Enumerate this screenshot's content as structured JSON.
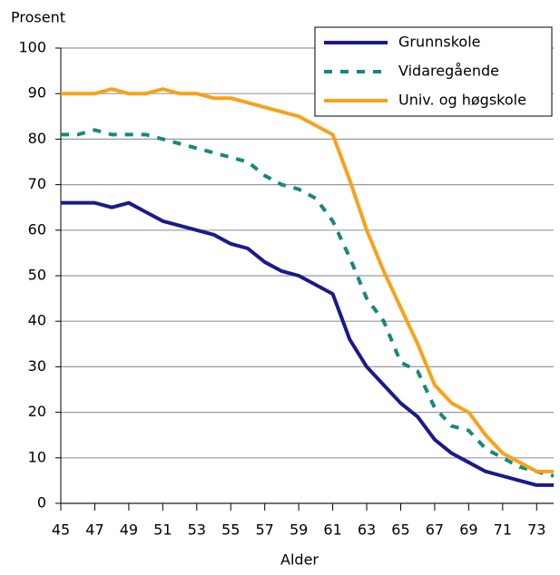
{
  "chart_data": {
    "type": "line",
    "y_label": "Prosent",
    "x_label": "Alder",
    "x": [
      45,
      46,
      47,
      48,
      49,
      50,
      51,
      52,
      53,
      54,
      55,
      56,
      57,
      58,
      59,
      60,
      61,
      62,
      63,
      64,
      65,
      66,
      67,
      68,
      69,
      70,
      71,
      72,
      73,
      74
    ],
    "series": [
      {
        "name": "Grunnskole",
        "color": "#1a1a8c",
        "dashed": false,
        "values": [
          66,
          66,
          66,
          65,
          66,
          64,
          62,
          61,
          60,
          59,
          57,
          56,
          53,
          51,
          50,
          48,
          46,
          36,
          30,
          26,
          22,
          19,
          14,
          11,
          9,
          7,
          6,
          5,
          4,
          4
        ]
      },
      {
        "name": "Vidaregående",
        "color": "#17877e",
        "dashed": true,
        "values": [
          81,
          81,
          82,
          81,
          81,
          81,
          80,
          79,
          78,
          77,
          76,
          75,
          72,
          70,
          69,
          67,
          62,
          54,
          45,
          40,
          31,
          29,
          21,
          17,
          16,
          12,
          10,
          8,
          7,
          6
        ]
      },
      {
        "name": "Univ. og høgskole",
        "color": "#f7a21b",
        "dashed": false,
        "values": [
          90,
          90,
          90,
          91,
          90,
          90,
          91,
          90,
          90,
          89,
          89,
          88,
          87,
          86,
          85,
          83,
          81,
          71,
          60,
          51,
          43,
          35,
          26,
          22,
          20,
          15,
          11,
          9,
          7,
          7
        ]
      }
    ],
    "xlim": [
      45,
      74
    ],
    "xticks": [
      45,
      47,
      49,
      51,
      53,
      55,
      57,
      59,
      61,
      63,
      65,
      67,
      69,
      71,
      73
    ],
    "ylim": [
      0,
      100
    ],
    "yticks": [
      0,
      10,
      20,
      30,
      40,
      50,
      60,
      70,
      80,
      90,
      100
    ],
    "grid": true,
    "legend": "top-right"
  }
}
